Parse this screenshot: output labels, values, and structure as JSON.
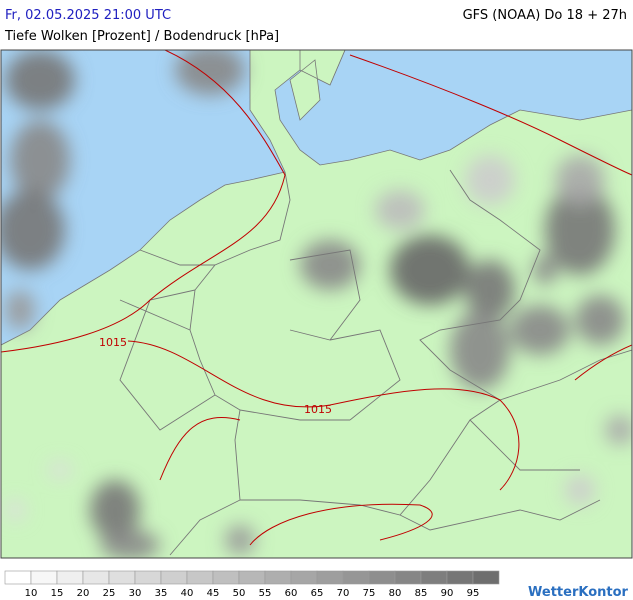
{
  "header": {
    "datetime": "Fr, 02.05.2025 21:00 UTC",
    "model": "GFS (NOAA) Do 18 + 27h",
    "subtitle": "Tiefe Wolken [Prozent] / Bodendruck [hPa]"
  },
  "map": {
    "isobar_labels": [
      "1015",
      "1015"
    ]
  },
  "legend": {
    "labels": [
      10,
      15,
      20,
      25,
      30,
      35,
      40,
      45,
      50,
      55,
      60,
      65,
      70,
      75,
      80,
      85,
      90,
      95
    ]
  },
  "brand": "WetterKontor"
}
